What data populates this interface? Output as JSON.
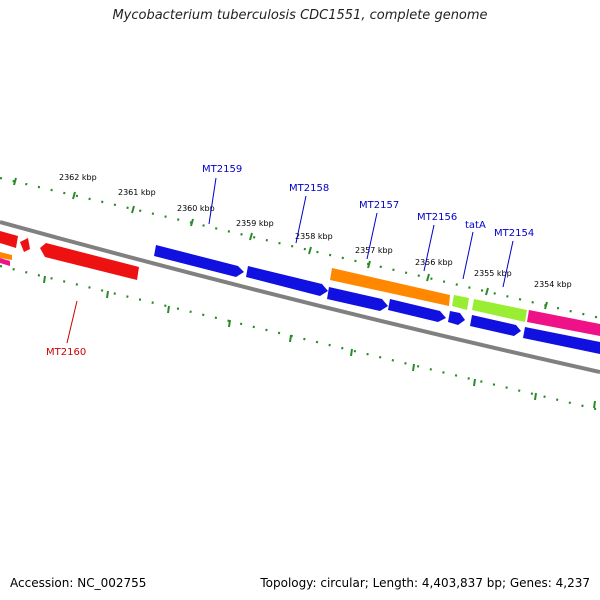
{
  "title": "Mycobacterium tuberculosis CDC1551, complete genome",
  "footer": {
    "accession": "Accession: NC_002755",
    "summary": "Topology: circular; Length: 4,403,837 bp; Genes: 4,237"
  },
  "colors": {
    "backbone": "#808080",
    "ticks": "#2a8a2a",
    "forward_label": "#0000cc",
    "reverse_label": "#cc0000",
    "cds": "#1010e0",
    "rna": "#ff8800",
    "regulatory": "#99ee33",
    "misc": "#ee1188",
    "reverse_cds": "#ee1111"
  },
  "tick_labels": [
    "2362 kbp",
    "2361 kbp",
    "2360 kbp",
    "2359 kbp",
    "2358 kbp",
    "2357 kbp",
    "2356 kbp",
    "2355 kbp",
    "2354 kbp"
  ],
  "gene_labels": {
    "forward": [
      "MT2159",
      "MT2158",
      "MT2157",
      "MT2156",
      "tatA",
      "MT2154"
    ],
    "reverse": [
      "MT2160"
    ]
  }
}
